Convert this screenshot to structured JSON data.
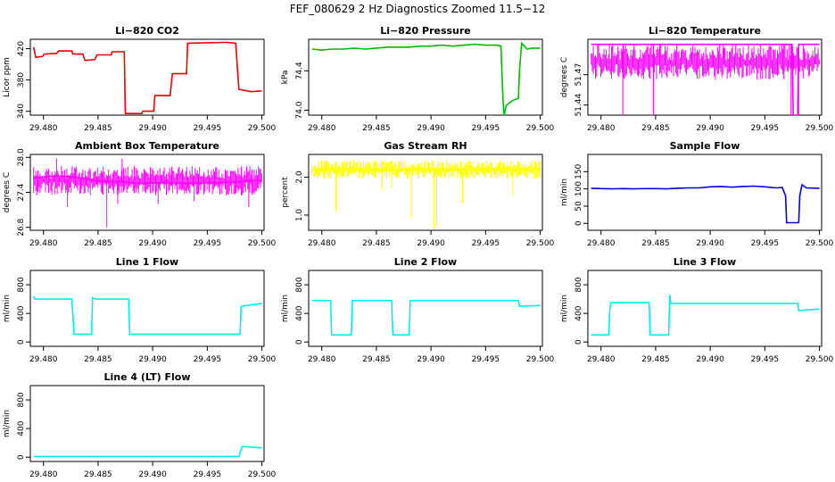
{
  "figure": {
    "title": "FEF_080629  2 Hz Diagnostics Zoomed 11.5−12"
  },
  "chart_data": [
    {
      "id": "co2",
      "type": "line",
      "title": "Li−820 CO2",
      "ylabel": "Licor ppm",
      "color": "#ee0000",
      "xlim": [
        29.4788,
        29.5002
      ],
      "ylim": [
        335,
        432
      ],
      "xticks": [
        29.48,
        29.485,
        29.49,
        29.495,
        29.5
      ],
      "xtick_labels": [
        "29.480",
        "29.485",
        "29.490",
        "29.495",
        "29.500"
      ],
      "yticks": [
        340,
        380,
        420
      ],
      "ytick_labels": [
        "340",
        "380",
        "420"
      ],
      "series": [
        {
          "name": "CO2",
          "x": [
            29.4791,
            29.4793,
            29.4799,
            29.4801,
            29.4812,
            29.4814,
            29.4826,
            29.4827,
            29.4836,
            29.4838,
            29.4847,
            29.4849,
            29.4862,
            29.4863,
            29.4874,
            29.4875,
            29.489,
            29.4891,
            29.4901,
            29.4902,
            29.4916,
            29.4918,
            29.4931,
            29.4932,
            29.4966,
            29.4968,
            29.4976,
            29.4979,
            29.499,
            29.5
          ],
          "y": [
            422,
            409,
            410,
            413,
            414,
            417,
            417,
            413,
            413,
            405,
            406,
            412,
            412,
            416,
            416,
            337,
            337,
            340,
            340,
            360,
            360,
            388,
            388,
            427,
            428,
            428,
            427,
            368,
            365,
            366
          ]
        }
      ]
    },
    {
      "id": "pressure",
      "type": "line",
      "title": "Li−820 Pressure",
      "ylabel": "kPa",
      "color": "#00bb00",
      "xlim": [
        29.4788,
        29.5002
      ],
      "ylim": [
        73.95,
        74.72
      ],
      "xticks": [
        29.48,
        29.485,
        29.49,
        29.495,
        29.5
      ],
      "xtick_labels": [
        "29.480",
        "29.485",
        "29.490",
        "29.495",
        "29.500"
      ],
      "yticks": [
        74.0,
        74.4
      ],
      "ytick_labels": [
        "74.0",
        "74.4"
      ],
      "series": [
        {
          "name": "Pressure",
          "x": [
            29.4791,
            29.48,
            29.481,
            29.482,
            29.483,
            29.484,
            29.485,
            29.486,
            29.487,
            29.488,
            29.489,
            29.49,
            29.491,
            29.492,
            29.493,
            29.494,
            29.495,
            29.496,
            29.4964,
            29.4966,
            29.4967,
            29.4969,
            29.4975,
            29.498,
            29.4981,
            29.4983,
            29.4988,
            29.4992,
            29.5
          ],
          "y": [
            74.62,
            74.61,
            74.62,
            74.62,
            74.63,
            74.62,
            74.63,
            74.64,
            74.64,
            74.64,
            74.65,
            74.65,
            74.66,
            74.65,
            74.66,
            74.67,
            74.66,
            74.66,
            74.65,
            74.1,
            73.95,
            74.05,
            74.1,
            74.12,
            74.4,
            74.68,
            74.62,
            74.63,
            74.63
          ]
        }
      ]
    },
    {
      "id": "licor_temp",
      "type": "line",
      "title": "Li−820 Temperature",
      "ylabel": "degrees C",
      "color": "#ff00ff",
      "xlim": [
        29.4788,
        29.5002
      ],
      "ylim": [
        51.43,
        51.505
      ],
      "xticks": [
        29.48,
        29.485,
        29.49,
        29.495,
        29.5
      ],
      "xtick_labels": [
        "29.480",
        "29.485",
        "29.490",
        "29.495",
        "29.500"
      ],
      "yticks": [
        51.44,
        51.47
      ],
      "ytick_labels": [
        "51.44",
        "51.47"
      ],
      "band": [
        51.465,
        51.5
      ],
      "series": [
        {
          "name": "Temperature",
          "x": [
            29.4791,
            29.4975,
            29.4976,
            29.498,
            29.4981,
            29.5
          ],
          "y": [
            51.5,
            51.5,
            51.43,
            51.43,
            51.5,
            51.5
          ]
        }
      ],
      "spikes": [
        {
          "x": 29.482,
          "y": 51.43
        },
        {
          "x": 29.4848,
          "y": 51.43
        },
        {
          "x": 29.4912,
          "y": 51.487
        },
        {
          "x": 29.4974,
          "y": 51.43
        },
        {
          "x": 29.4981,
          "y": 51.43
        }
      ]
    },
    {
      "id": "box_temp",
      "type": "line",
      "title": "Ambient Box Temperature",
      "ylabel": "degrees C",
      "color": "#ff00ff",
      "xlim": [
        29.4788,
        29.5002
      ],
      "ylim": [
        26.75,
        28.05
      ],
      "xticks": [
        29.48,
        29.485,
        29.49,
        29.495,
        29.5
      ],
      "xtick_labels": [
        "29.480",
        "29.485",
        "29.490",
        "29.495",
        "29.500"
      ],
      "yticks": [
        26.8,
        27.4,
        28.0
      ],
      "ytick_labels": [
        "26.8",
        "27.4",
        "28.0"
      ],
      "band": [
        27.35,
        27.85
      ],
      "series": [
        {
          "name": "Box temperature",
          "x": [
            29.4791,
            29.481,
            29.483,
            29.485,
            29.487,
            29.489,
            29.491,
            29.493,
            29.495,
            29.497,
            29.499,
            29.5
          ],
          "y": [
            27.65,
            27.68,
            27.66,
            27.6,
            27.58,
            27.55,
            27.57,
            27.55,
            27.56,
            27.57,
            27.6,
            27.6
          ]
        }
      ],
      "spikes": [
        {
          "x": 29.4858,
          "y": 26.8
        },
        {
          "x": 29.4822,
          "y": 27.15
        },
        {
          "x": 29.4868,
          "y": 27.2
        },
        {
          "x": 29.4905,
          "y": 27.2
        },
        {
          "x": 29.4938,
          "y": 27.25
        },
        {
          "x": 29.4988,
          "y": 27.15
        },
        {
          "x": 29.4812,
          "y": 27.98
        },
        {
          "x": 29.4872,
          "y": 27.98
        }
      ]
    },
    {
      "id": "rh",
      "type": "line",
      "title": "Gas Stream RH",
      "ylabel": "percent",
      "color": "#ffff00",
      "xlim": [
        29.4788,
        29.5002
      ],
      "ylim": [
        0.6,
        2.6
      ],
      "xticks": [
        29.48,
        29.485,
        29.49,
        29.495,
        29.5
      ],
      "xtick_labels": [
        "29.480",
        "29.485",
        "29.490",
        "29.495",
        "29.500"
      ],
      "yticks": [
        1.0,
        2.0
      ],
      "ytick_labels": [
        "1.0",
        "2.0"
      ],
      "band": [
        1.95,
        2.45
      ],
      "series": [
        {
          "name": "RH",
          "x": [
            29.4791,
            29.482,
            29.485,
            29.488,
            29.491,
            29.494,
            29.497,
            29.5
          ],
          "y": [
            2.2,
            2.2,
            2.2,
            2.2,
            2.2,
            2.2,
            2.2,
            2.2
          ]
        }
      ],
      "spikes": [
        {
          "x": 29.4813,
          "y": 1.1
        },
        {
          "x": 29.4855,
          "y": 1.65
        },
        {
          "x": 29.4864,
          "y": 1.7
        },
        {
          "x": 29.4882,
          "y": 0.9
        },
        {
          "x": 29.4903,
          "y": 0.65
        },
        {
          "x": 29.4905,
          "y": 0.7
        },
        {
          "x": 29.4929,
          "y": 1.3
        },
        {
          "x": 29.4975,
          "y": 1.5
        }
      ]
    },
    {
      "id": "sample_flow",
      "type": "line",
      "title": "Sample Flow",
      "ylabel": "ml/min",
      "color": "#0000dd",
      "xlim": [
        29.4788,
        29.5002
      ],
      "ylim": [
        -20,
        200
      ],
      "xticks": [
        29.48,
        29.485,
        29.49,
        29.495,
        29.5
      ],
      "xtick_labels": [
        "29.480",
        "29.485",
        "29.490",
        "29.495",
        "29.500"
      ],
      "yticks": [
        0,
        50,
        100,
        150
      ],
      "ytick_labels": [
        "0",
        "50",
        "100",
        "150"
      ],
      "series": [
        {
          "name": "Sample flow",
          "x": [
            29.4791,
            29.48,
            29.481,
            29.482,
            29.483,
            29.484,
            29.485,
            29.486,
            29.487,
            29.488,
            29.489,
            29.49,
            29.491,
            29.492,
            29.493,
            29.494,
            29.495,
            29.496,
            29.4966,
            29.4969,
            29.497,
            29.4981,
            29.4982,
            29.4984,
            29.4988,
            29.5
          ],
          "y": [
            102,
            101,
            100,
            101,
            100,
            101,
            101,
            100,
            102,
            103,
            103,
            106,
            107,
            105,
            107,
            108,
            106,
            103,
            104,
            80,
            2,
            2,
            80,
            112,
            103,
            102
          ]
        }
      ]
    },
    {
      "id": "line1",
      "type": "line",
      "title": "Line 1 Flow",
      "ylabel": "ml/min",
      "color": "#00eeee",
      "xlim": [
        29.4788,
        29.5002
      ],
      "ylim": [
        -60,
        1000
      ],
      "xticks": [
        29.48,
        29.485,
        29.49,
        29.495,
        29.5
      ],
      "xtick_labels": [
        "29.480",
        "29.485",
        "29.490",
        "29.495",
        "29.500"
      ],
      "yticks": [
        0,
        400,
        800
      ],
      "ytick_labels": [
        "0",
        "400",
        "800"
      ],
      "series": [
        {
          "name": "Line 1",
          "x": [
            29.4791,
            29.4792,
            29.4826,
            29.4828,
            29.4844,
            29.4845,
            29.4848,
            29.4878,
            29.4879,
            29.498,
            29.4981,
            29.5
          ],
          "y": [
            640,
            600,
            600,
            110,
            110,
            620,
            600,
            600,
            110,
            110,
            500,
            540
          ]
        }
      ]
    },
    {
      "id": "line2",
      "type": "line",
      "title": "Line 2 Flow",
      "ylabel": "ml/min",
      "color": "#00eeee",
      "xlim": [
        29.4788,
        29.5002
      ],
      "ylim": [
        -60,
        1000
      ],
      "xticks": [
        29.48,
        29.485,
        29.49,
        29.495,
        29.5
      ],
      "xtick_labels": [
        "29.480",
        "29.485",
        "29.490",
        "29.495",
        "29.500"
      ],
      "yticks": [
        0,
        400,
        800
      ],
      "ytick_labels": [
        "0",
        "400",
        "800"
      ],
      "series": [
        {
          "name": "Line 2",
          "x": [
            29.4791,
            29.4808,
            29.4809,
            29.4827,
            29.4828,
            29.4864,
            29.4865,
            29.488,
            29.4881,
            29.498,
            29.4981,
            29.5
          ],
          "y": [
            580,
            580,
            100,
            100,
            580,
            580,
            100,
            100,
            580,
            580,
            500,
            510
          ]
        }
      ]
    },
    {
      "id": "line3",
      "type": "line",
      "title": "Line 3 Flow",
      "ylabel": "ml/min",
      "color": "#00eeee",
      "xlim": [
        29.4788,
        29.5002
      ],
      "ylim": [
        -60,
        1000
      ],
      "xticks": [
        29.48,
        29.485,
        29.49,
        29.495,
        29.5
      ],
      "xtick_labels": [
        "29.480",
        "29.485",
        "29.490",
        "29.495",
        "29.500"
      ],
      "yticks": [
        0,
        400,
        800
      ],
      "ytick_labels": [
        "0",
        "400",
        "800"
      ],
      "series": [
        {
          "name": "Line 3",
          "x": [
            29.4791,
            29.4807,
            29.4808,
            29.4809,
            29.4844,
            29.4845,
            29.4862,
            29.4863,
            29.4864,
            29.498,
            29.4981,
            29.5
          ],
          "y": [
            100,
            100,
            440,
            550,
            550,
            100,
            100,
            660,
            540,
            540,
            440,
            460
          ]
        }
      ]
    },
    {
      "id": "line4",
      "type": "line",
      "title": "Line 4 (LT) Flow",
      "ylabel": "ml/min",
      "color": "#00eeee",
      "xlim": [
        29.4788,
        29.5002
      ],
      "ylim": [
        -60,
        1000
      ],
      "xticks": [
        29.48,
        29.485,
        29.49,
        29.495,
        29.5
      ],
      "xtick_labels": [
        "29.480",
        "29.485",
        "29.490",
        "29.495",
        "29.500"
      ],
      "yticks": [
        0,
        400,
        800
      ],
      "ytick_labels": [
        "0",
        "400",
        "800"
      ],
      "series": [
        {
          "name": "Line 4",
          "x": [
            29.4791,
            29.4979,
            29.498,
            29.4982,
            29.5
          ],
          "y": [
            10,
            10,
            60,
            150,
            130
          ]
        }
      ]
    }
  ]
}
